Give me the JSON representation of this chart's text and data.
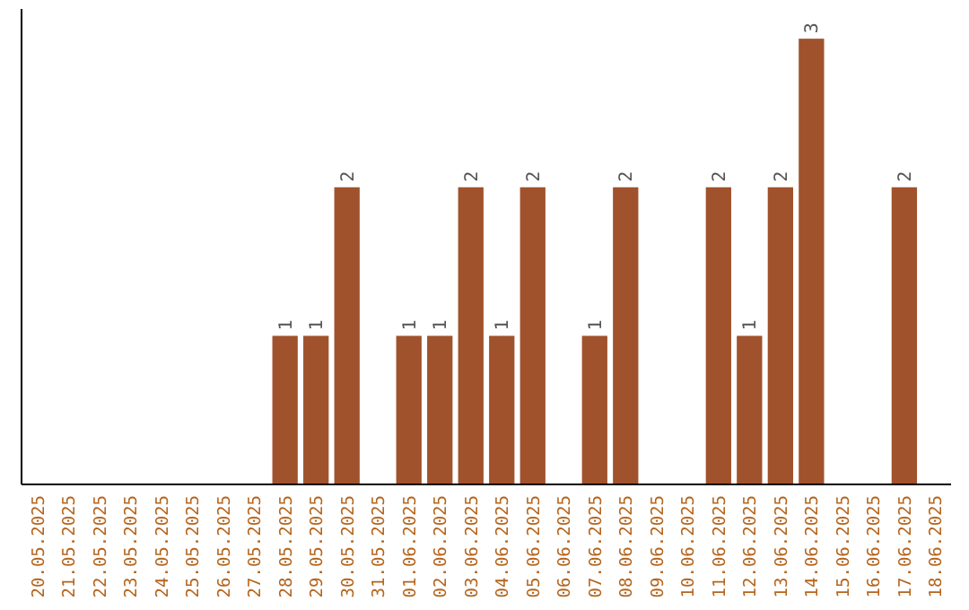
{
  "chart_data": {
    "type": "bar",
    "categories": [
      "20.05.2025",
      "21.05.2025",
      "22.05.2025",
      "23.05.2025",
      "24.05.2025",
      "25.05.2025",
      "26.05.2025",
      "27.05.2025",
      "28.05.2025",
      "29.05.2025",
      "30.05.2025",
      "31.05.2025",
      "01.06.2025",
      "02.06.2025",
      "03.06.2025",
      "04.06.2025",
      "05.06.2025",
      "06.06.2025",
      "07.06.2025",
      "08.06.2025",
      "09.06.2025",
      "10.06.2025",
      "11.06.2025",
      "12.06.2025",
      "13.06.2025",
      "14.06.2025",
      "15.06.2025",
      "16.06.2025",
      "17.06.2025",
      "18.06.2025"
    ],
    "values": [
      0,
      0,
      0,
      0,
      0,
      0,
      0,
      0,
      1,
      1,
      2,
      0,
      1,
      1,
      2,
      1,
      2,
      0,
      1,
      2,
      0,
      0,
      2,
      1,
      2,
      3,
      0,
      0,
      2,
      0
    ],
    "value_labels": [
      null,
      null,
      null,
      null,
      null,
      null,
      null,
      null,
      "1",
      "1",
      "2",
      null,
      "1",
      "1",
      "2",
      "1",
      "2",
      null,
      "1",
      "2",
      null,
      null,
      "2",
      "1",
      "2",
      "3",
      null,
      null,
      "2",
      null
    ],
    "color": "#a0522d",
    "ylim": [
      0,
      3.2
    ],
    "tick_labels": "x"
  }
}
